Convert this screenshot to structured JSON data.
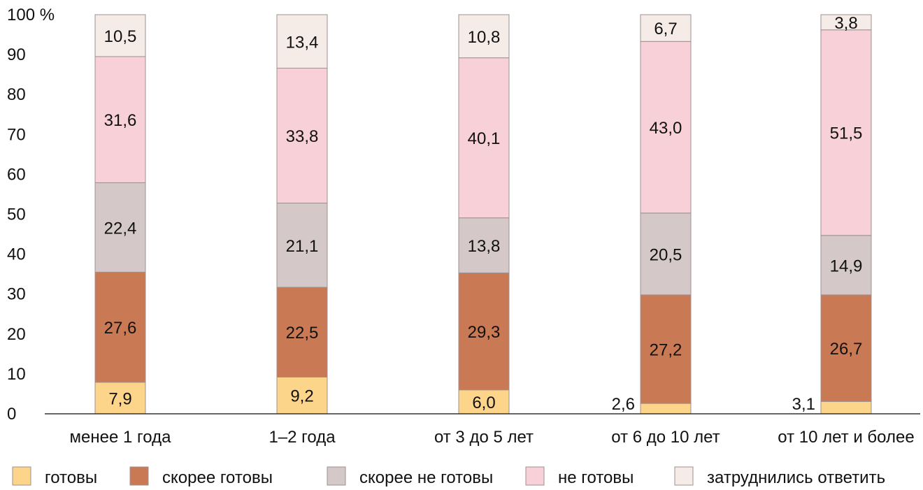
{
  "chart_data": {
    "type": "bar",
    "stacked": true,
    "categories": [
      "менее 1 года",
      "1–2 года",
      "от 3 до 5 лет",
      "от 6 до 10 лет",
      "от 10 лет и более"
    ],
    "series": [
      {
        "name": "готовы",
        "color": "#fcd48a",
        "values": [
          7.9,
          9.2,
          6.0,
          2.6,
          3.1
        ],
        "labels": [
          "7,9",
          "9,2",
          "6,0",
          "2,6",
          "3,1"
        ]
      },
      {
        "name": "скорее готовы",
        "color": "#c97a55",
        "values": [
          27.6,
          22.5,
          29.3,
          27.2,
          26.7
        ],
        "labels": [
          "27,6",
          "22,5",
          "29,3",
          "27,2",
          "26,7"
        ]
      },
      {
        "name": "скорее не готовы",
        "color": "#d4c8c8",
        "values": [
          22.4,
          21.1,
          13.8,
          20.5,
          14.9
        ],
        "labels": [
          "22,4",
          "21,1",
          "13,8",
          "20,5",
          "14,9"
        ]
      },
      {
        "name": "не готовы",
        "color": "#f7d1d7",
        "values": [
          31.6,
          33.8,
          40.1,
          43.0,
          51.5
        ],
        "labels": [
          "31,6",
          "33,8",
          "40,1",
          "43,0",
          "51,5"
        ]
      },
      {
        "name": "затруднились ответить",
        "color": "#f5ece8",
        "values": [
          10.5,
          13.4,
          10.8,
          6.7,
          3.8
        ],
        "labels": [
          "10,5",
          "13,4",
          "10,8",
          "6,7",
          "3,8"
        ]
      }
    ],
    "yticks": [
      "0",
      "10",
      "20",
      "30",
      "40",
      "50",
      "60",
      "70",
      "80",
      "90",
      "100 %"
    ],
    "ylim": [
      0,
      100
    ],
    "grid": false,
    "legend_position": "bottom"
  }
}
